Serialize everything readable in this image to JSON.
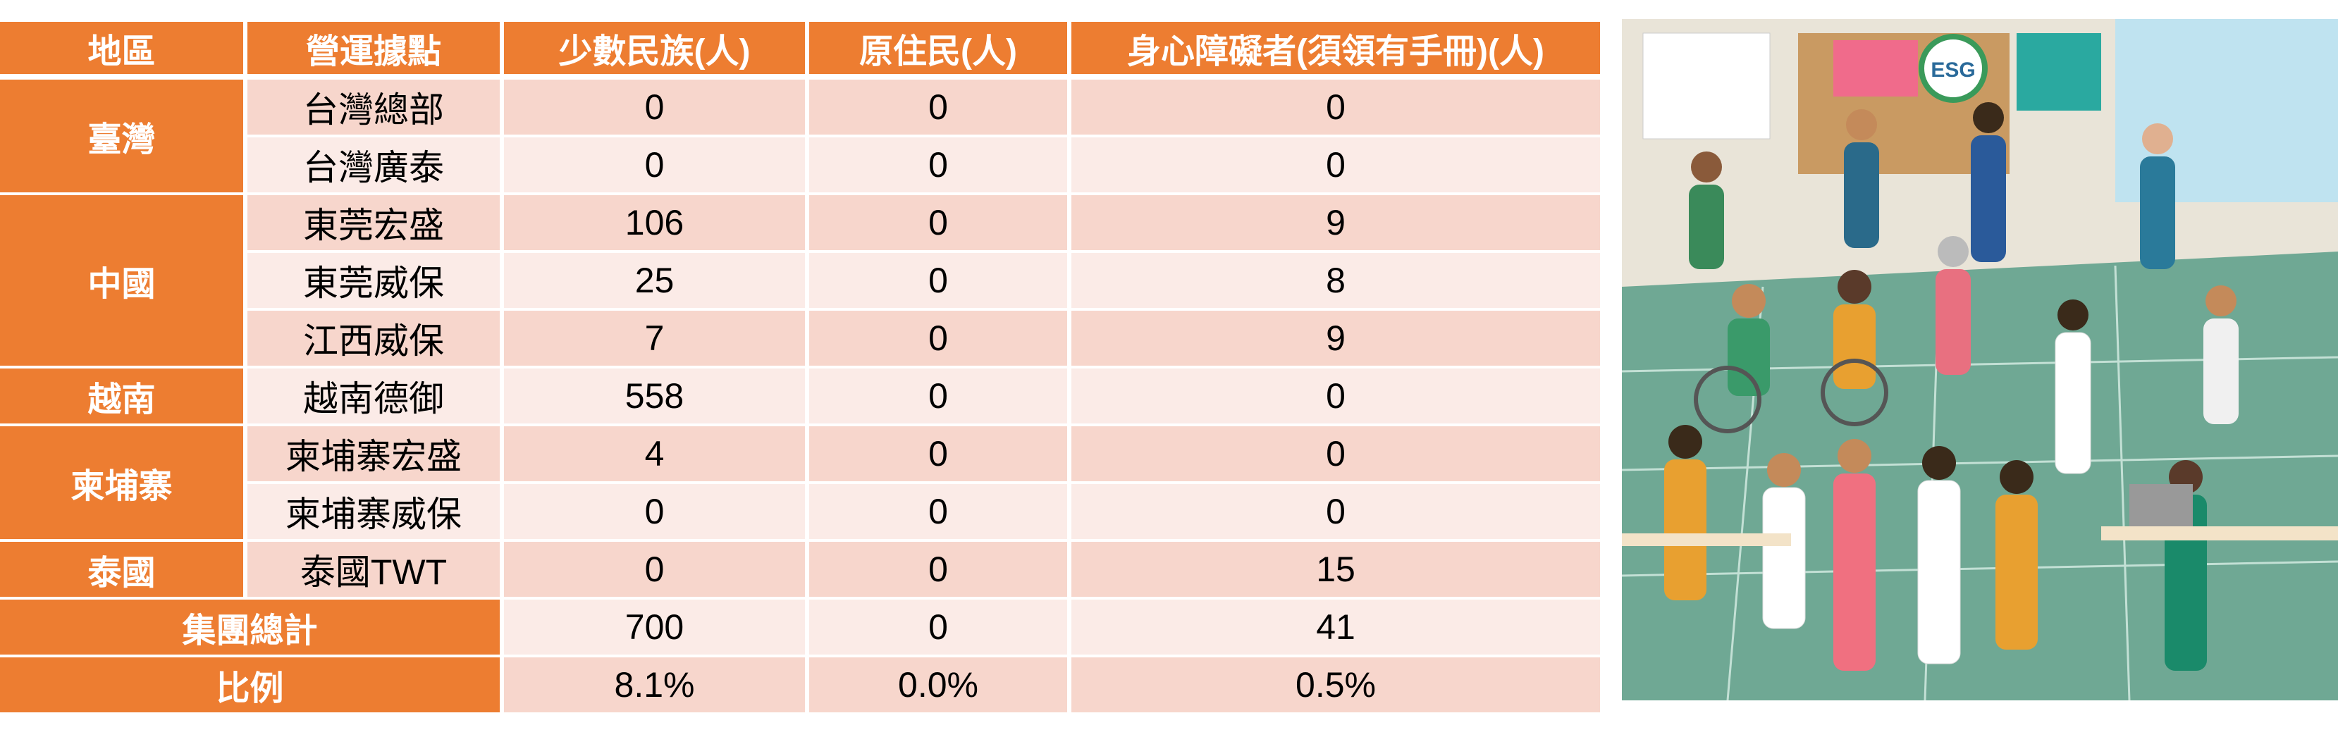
{
  "table": {
    "headers": [
      "地區",
      "營運據點",
      "少數民族(人)",
      "原住民(人)",
      "身心障礙者(須領有手冊)(人)"
    ],
    "regions": [
      {
        "name": "臺灣",
        "span": 2
      },
      {
        "name": "中國",
        "span": 3
      },
      {
        "name": "越南",
        "span": 1
      },
      {
        "name": "柬埔寨",
        "span": 2
      },
      {
        "name": "泰國",
        "span": 1
      }
    ],
    "rows": [
      {
        "site": "台灣總部",
        "minority": "0",
        "indigenous": "0",
        "disabled": "0"
      },
      {
        "site": "台灣廣泰",
        "minority": "0",
        "indigenous": "0",
        "disabled": "0"
      },
      {
        "site": "東莞宏盛",
        "minority": "106",
        "indigenous": "0",
        "disabled": "9"
      },
      {
        "site": "東莞威保",
        "minority": "25",
        "indigenous": "0",
        "disabled": "8"
      },
      {
        "site": "江西威保",
        "minority": "7",
        "indigenous": "0",
        "disabled": "9"
      },
      {
        "site": "越南德御",
        "minority": "558",
        "indigenous": "0",
        "disabled": "0"
      },
      {
        "site": "柬埔寨宏盛",
        "minority": "4",
        "indigenous": "0",
        "disabled": "0"
      },
      {
        "site": "柬埔寨威保",
        "minority": "0",
        "indigenous": "0",
        "disabled": "0"
      },
      {
        "site": "泰國TWT",
        "minority": "0",
        "indigenous": "0",
        "disabled": "15"
      }
    ],
    "total": {
      "label": "集團總計",
      "minority": "700",
      "indigenous": "0",
      "disabled": "41"
    },
    "ratio": {
      "label": "比例",
      "minority": "8.1%",
      "indigenous": "0.0%",
      "disabled": "0.5%"
    }
  },
  "illustration": {
    "sign_text": "ESG"
  },
  "colors": {
    "accent": "#ed7d31",
    "row_dark": "#f7d6cc",
    "row_light": "#fbebe7"
  }
}
